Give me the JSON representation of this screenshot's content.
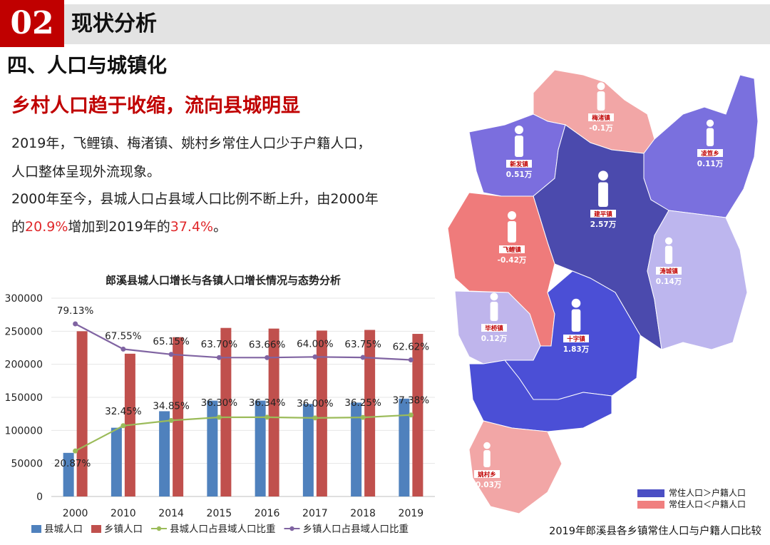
{
  "header": {
    "number": "02",
    "title": "现状分析"
  },
  "section_title": "四、人口与城镇化",
  "headline": "乡村人口趋于收缩，流向县城明显",
  "paragraph": {
    "line1": "2019年，飞鲤镇、梅渚镇、姚村乡常住人口少于户籍人口，",
    "line2": "人口整体呈现外流现象。",
    "line3": "2000年至今，县城人口占县域人口比例不断上升，由2000年",
    "line4_a": "的",
    "line4_b": "20.9%",
    "line4_c": "增加到2019年的",
    "line4_d": "37.4%",
    "line4_e": "。"
  },
  "chart_data": {
    "type": "bar",
    "title": "郎溪县城人口增长与各镇人口增长情况与态势分析",
    "categories": [
      "2000",
      "2010",
      "2014",
      "2015",
      "2016",
      "2017",
      "2018",
      "2019"
    ],
    "ylim": [
      0,
      300000
    ],
    "yticks": [
      "0",
      "50000",
      "100000",
      "150000",
      "200000",
      "250000",
      "300000"
    ],
    "series": [
      {
        "name": "县城人口",
        "kind": "bar",
        "color": "#4f81bd",
        "values": [
          66000,
          104000,
          129000,
          145000,
          145000,
          140000,
          142000,
          148000
        ]
      },
      {
        "name": "乡镇人口",
        "kind": "bar",
        "color": "#c0504d",
        "values": [
          250000,
          216000,
          241000,
          255000,
          254000,
          251000,
          252000,
          246000
        ]
      },
      {
        "name": "县城人口占县域人口比重",
        "kind": "line",
        "color": "#9bbb59",
        "values": [
          20.87,
          32.45,
          34.85,
          36.3,
          36.34,
          36.0,
          36.25,
          37.38
        ],
        "labels": [
          "20.87%",
          "32.45%",
          "34.85%",
          "36.30%",
          "36.34%",
          "36.00%",
          "36.25%",
          "37.38%"
        ]
      },
      {
        "name": "乡镇人口占县域人口比重",
        "kind": "line",
        "color": "#8064a2",
        "values": [
          79.13,
          67.55,
          65.15,
          63.7,
          63.66,
          64.0,
          63.75,
          62.62
        ],
        "labels": [
          "79.13%",
          "67.55%",
          "65.15%",
          "63.70%",
          "63.66%",
          "64.00%",
          "63.75%",
          "62.62%"
        ]
      }
    ]
  },
  "map": {
    "caption": "2019年郎溪县各乡镇常住人口与户籍人口比较",
    "legend": [
      {
        "label": "常住人口＞户籍人口",
        "color": "#4b4fc4"
      },
      {
        "label": "常住人口＜户籍人口",
        "color": "#f07f7f"
      }
    ],
    "towns": [
      {
        "name": "梅渚镇",
        "value": "-0.1万"
      },
      {
        "name": "新发镇",
        "value": "0.51万"
      },
      {
        "name": "凌笪乡",
        "value": "0.11万"
      },
      {
        "name": "建平镇",
        "value": "2.57万"
      },
      {
        "name": "飞鲤镇",
        "value": "-0.42万"
      },
      {
        "name": "涛城镇",
        "value": "0.14万"
      },
      {
        "name": "毕桥镇",
        "value": "0.12万"
      },
      {
        "name": "十字镇",
        "value": "1.83万"
      },
      {
        "name": "姚村乡",
        "value": "-0.03万"
      }
    ]
  }
}
